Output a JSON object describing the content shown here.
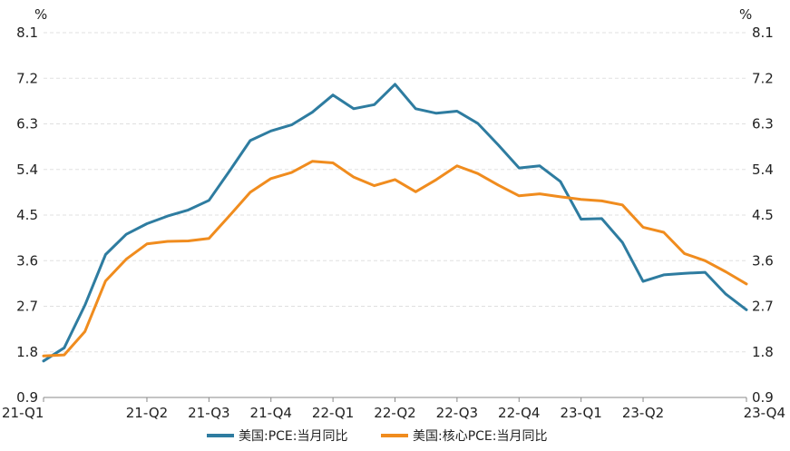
{
  "chart_data": {
    "type": "line",
    "left_unit": "%",
    "right_unit": "%",
    "ylim": [
      0.9,
      8.1
    ],
    "yticks": [
      "8.1",
      "7.2",
      "6.3",
      "5.4",
      "4.5",
      "3.6",
      "2.7",
      "1.8",
      "0.9"
    ],
    "x_tick_labels": [
      {
        "label": "21-Q1",
        "index": 0
      },
      {
        "label": "21-Q2",
        "index": 5
      },
      {
        "label": "21-Q3",
        "index": 8
      },
      {
        "label": "21-Q4",
        "index": 11
      },
      {
        "label": "22-Q1",
        "index": 14
      },
      {
        "label": "22-Q2",
        "index": 17
      },
      {
        "label": "22-Q3",
        "index": 20
      },
      {
        "label": "22-Q4",
        "index": 23
      },
      {
        "label": "23-Q1",
        "index": 26
      },
      {
        "label": "23-Q2",
        "index": 29
      },
      {
        "label": "23-Q4",
        "index": 34
      }
    ],
    "grid": true,
    "legend_position": "bottom",
    "series": [
      {
        "name": "美国:PCE:当月同比",
        "color": "#2e7ca0",
        "values": [
          1.62,
          1.88,
          2.72,
          3.72,
          4.12,
          4.33,
          4.48,
          4.6,
          4.79,
          5.37,
          5.97,
          6.16,
          6.28,
          6.53,
          6.87,
          6.6,
          6.68,
          7.08,
          6.6,
          6.51,
          6.55,
          6.31,
          5.88,
          5.43,
          5.47,
          5.16,
          4.42,
          4.43,
          3.96,
          3.19,
          3.32,
          3.35,
          3.37,
          2.94,
          2.63
        ]
      },
      {
        "name": "美国:核心PCE:当月同比",
        "color": "#f08c1e",
        "values": [
          1.72,
          1.74,
          2.2,
          3.2,
          3.63,
          3.93,
          3.98,
          3.99,
          4.04,
          4.49,
          4.95,
          5.22,
          5.34,
          5.56,
          5.53,
          5.25,
          5.08,
          5.2,
          4.96,
          5.2,
          5.47,
          5.32,
          5.09,
          4.88,
          4.92,
          4.86,
          4.81,
          4.78,
          4.7,
          4.26,
          4.16,
          3.74,
          3.6,
          3.38,
          3.14
        ]
      }
    ]
  }
}
